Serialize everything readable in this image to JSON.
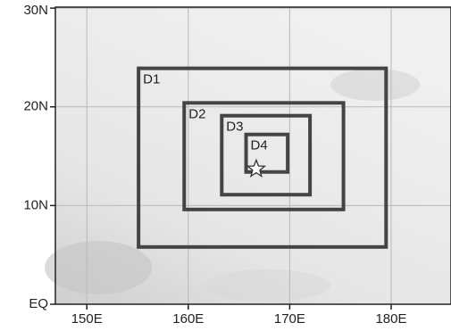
{
  "map": {
    "xlim": [
      146.9,
      185.9
    ],
    "ylim": [
      0,
      30.1
    ],
    "xticks": [
      {
        "value": 150,
        "label": "150E"
      },
      {
        "value": 160,
        "label": "160E"
      },
      {
        "value": 170,
        "label": "170E"
      },
      {
        "value": 180,
        "label": "180E"
      }
    ],
    "yticks": [
      {
        "value": 0,
        "label": "EQ"
      },
      {
        "value": 10,
        "label": "10N"
      },
      {
        "value": 20,
        "label": "20N"
      },
      {
        "value": 30,
        "label": "30N"
      }
    ],
    "domains": [
      {
        "label": "D1",
        "lon": [
          155.1,
          179.5
        ],
        "lat": [
          5.8,
          23.9
        ]
      },
      {
        "label": "D2",
        "lon": [
          159.6,
          175.3
        ],
        "lat": [
          9.6,
          20.4
        ]
      },
      {
        "label": "D3",
        "lon": [
          163.3,
          172.0
        ],
        "lat": [
          11.1,
          19.1
        ]
      },
      {
        "label": "D4",
        "lon": [
          165.7,
          169.8
        ],
        "lat": [
          13.4,
          17.2
        ]
      }
    ],
    "star": {
      "lon": 166.7,
      "lat": 13.7
    }
  }
}
